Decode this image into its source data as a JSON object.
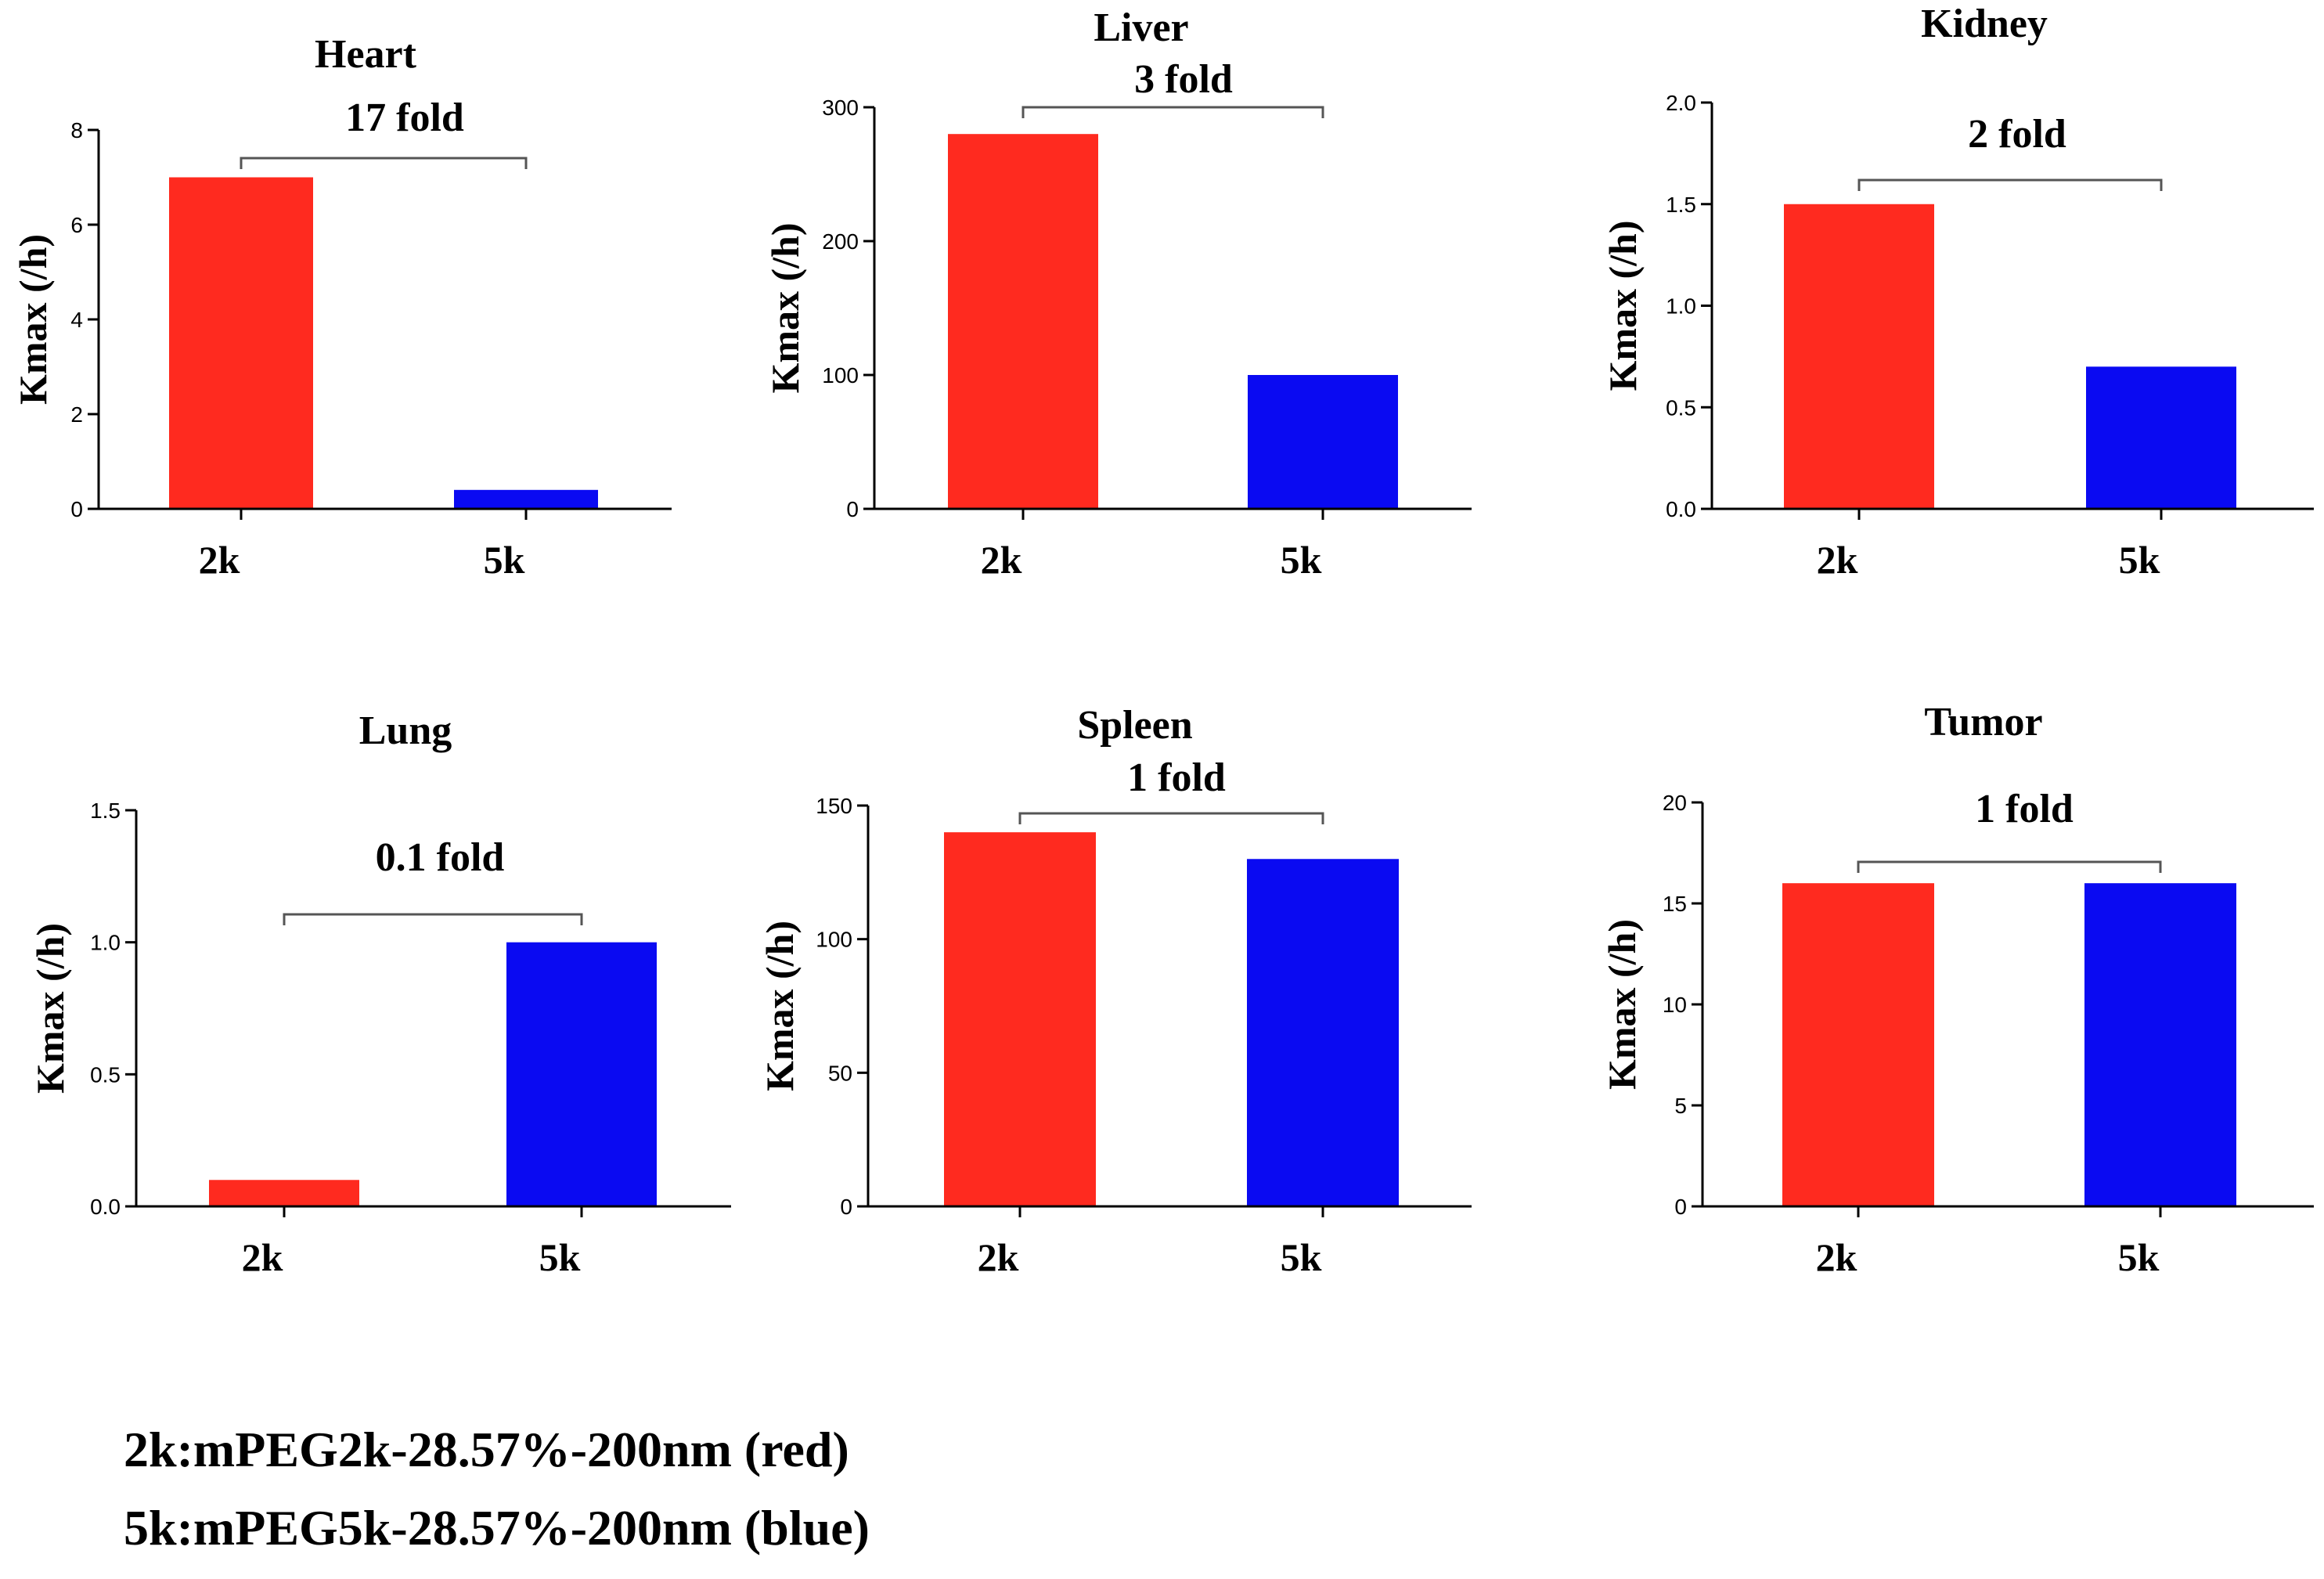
{
  "colors": {
    "red": "#ff2a1f",
    "blue": "#0a0af2",
    "axis": "#000000",
    "bracket": "#555555"
  },
  "chart_data": [
    {
      "type": "bar",
      "title": "Heart",
      "categories": [
        "2k",
        "5k"
      ],
      "values": [
        7.0,
        0.4
      ],
      "ylabel": "Kmax (/h)",
      "ylim": [
        0,
        8
      ],
      "yticks": [
        0,
        2,
        4,
        6,
        8
      ],
      "yticklabels": [
        "0",
        "2",
        "4",
        "6",
        "8"
      ],
      "annotation": "17 fold"
    },
    {
      "type": "bar",
      "title": "Liver",
      "categories": [
        "2k",
        "5k"
      ],
      "values": [
        280,
        100
      ],
      "ylabel": "Kmax (/h)",
      "ylim": [
        0,
        300
      ],
      "yticks": [
        0,
        100,
        200,
        300
      ],
      "yticklabels": [
        "0",
        "100",
        "200",
        "300"
      ],
      "annotation": "3 fold"
    },
    {
      "type": "bar",
      "title": "Kidney",
      "categories": [
        "2k",
        "5k"
      ],
      "values": [
        1.5,
        0.7
      ],
      "ylabel": "Kmax (/h)",
      "ylim": [
        0,
        2.0
      ],
      "yticks": [
        0,
        0.5,
        1.0,
        1.5,
        2.0
      ],
      "yticklabels": [
        "0.0",
        "0.5",
        "1.0",
        "1.5",
        "2.0"
      ],
      "annotation": "2 fold"
    },
    {
      "type": "bar",
      "title": "Lung",
      "categories": [
        "2k",
        "5k"
      ],
      "values": [
        0.1,
        1.0
      ],
      "ylabel": "Kmax (/h)",
      "ylim": [
        0,
        1.5
      ],
      "yticks": [
        0,
        0.5,
        1.0,
        1.5
      ],
      "yticklabels": [
        "0.0",
        "0.5",
        "1.0",
        "1.5"
      ],
      "annotation": "0.1 fold"
    },
    {
      "type": "bar",
      "title": "Spleen",
      "categories": [
        "2k",
        "5k"
      ],
      "values": [
        140,
        130
      ],
      "ylabel": "Kmax (/h)",
      "ylim": [
        0,
        150
      ],
      "yticks": [
        0,
        50,
        100,
        150
      ],
      "yticklabels": [
        "0",
        "50",
        "100",
        "150"
      ],
      "annotation": "1 fold"
    },
    {
      "type": "bar",
      "title": "Tumor",
      "categories": [
        "2k",
        "5k"
      ],
      "values": [
        16,
        16
      ],
      "ylabel": "Kmax (/h)",
      "ylim": [
        0,
        20
      ],
      "yticks": [
        0,
        5,
        10,
        15,
        20
      ],
      "yticklabels": [
        "0",
        "5",
        "10",
        "15",
        "20"
      ],
      "annotation": "1 fold"
    }
  ],
  "legend": {
    "line1": "2k:mPEG2k-28.57%-200nm (red)",
    "line2": "5k:mPEG5k-28.57%-200nm (blue)"
  }
}
